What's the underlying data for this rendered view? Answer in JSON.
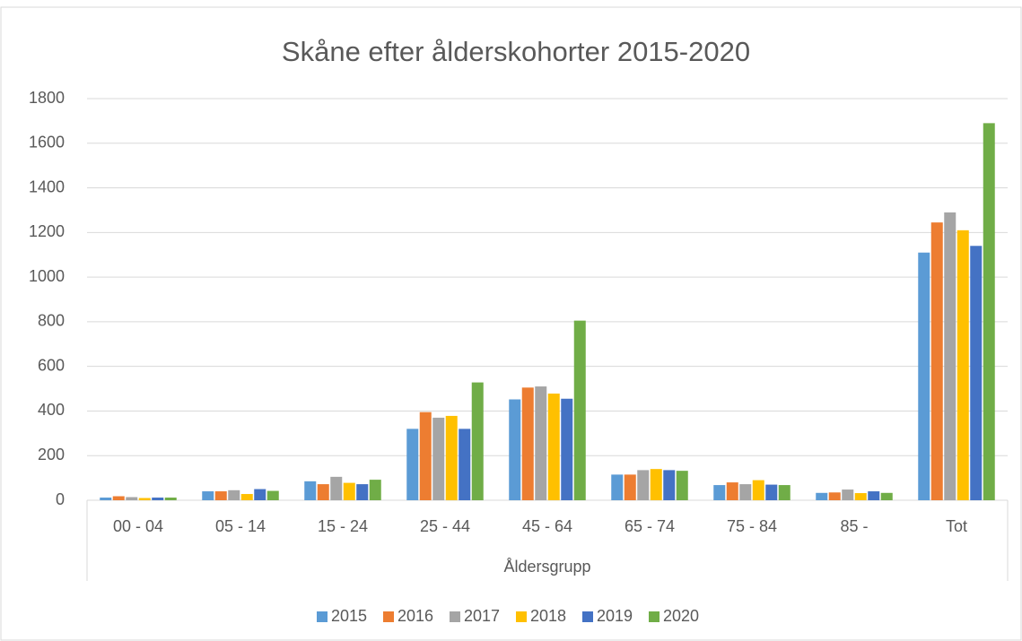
{
  "chart_data": {
    "type": "bar",
    "title": "Skåne efter ålderskohorter 2015-2020",
    "x_label": "Åldersgrupp",
    "categories": [
      "00 - 04",
      "05 - 14",
      "15 - 24",
      "25 - 44",
      "45 - 64",
      "65 - 74",
      "75 - 84",
      "85 -",
      "Tot"
    ],
    "series": [
      {
        "name": "2015",
        "color": "#5b9bd5",
        "values": [
          12,
          40,
          85,
          320,
          452,
          115,
          68,
          33,
          1110
        ]
      },
      {
        "name": "2016",
        "color": "#ed7d31",
        "values": [
          18,
          40,
          72,
          395,
          505,
          115,
          80,
          35,
          1245
        ]
      },
      {
        "name": "2017",
        "color": "#a5a5a5",
        "values": [
          14,
          45,
          105,
          370,
          510,
          135,
          72,
          48,
          1290
        ]
      },
      {
        "name": "2018",
        "color": "#ffc000",
        "values": [
          10,
          28,
          78,
          378,
          478,
          140,
          90,
          32,
          1210
        ]
      },
      {
        "name": "2019",
        "color": "#4472c4",
        "values": [
          12,
          50,
          72,
          320,
          455,
          135,
          70,
          40,
          1140
        ]
      },
      {
        "name": "2020",
        "color": "#70ad47",
        "values": [
          12,
          42,
          92,
          528,
          805,
          132,
          68,
          33,
          1690
        ]
      }
    ],
    "ylim": [
      0,
      1800
    ],
    "yticks": [
      0,
      200,
      400,
      600,
      800,
      1000,
      1200,
      1400,
      1600,
      1800
    ],
    "grid": true,
    "legend": "bottom"
  }
}
